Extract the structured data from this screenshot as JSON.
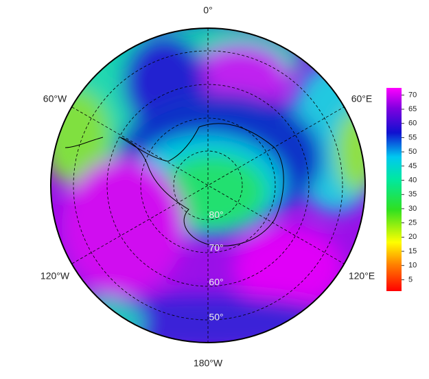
{
  "map": {
    "longitude_labels": [
      "0°",
      "60°E",
      "120°E",
      "180°W",
      "120°W",
      "60°W"
    ],
    "latitude_labels": [
      "80°",
      "70°",
      "60°",
      "50°"
    ]
  },
  "colorbar": {
    "range": [
      1,
      72.5
    ],
    "ticks": [
      5,
      10,
      15,
      20,
      25,
      30,
      35,
      40,
      45,
      50,
      55,
      60,
      65,
      70
    ]
  }
}
